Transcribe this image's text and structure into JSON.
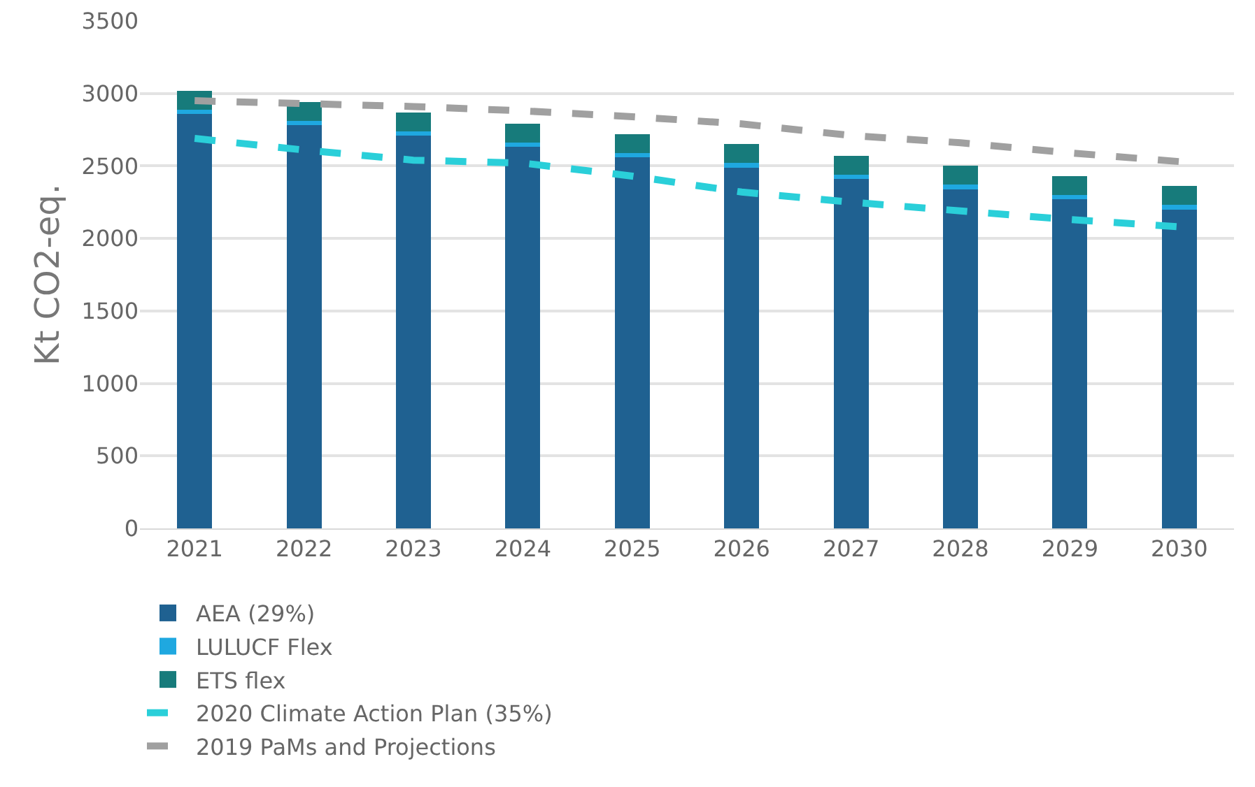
{
  "chart_data": {
    "type": "bar",
    "stacked": true,
    "ylabel": "Kt CO2-eq.",
    "categories": [
      "2021",
      "2022",
      "2023",
      "2024",
      "2025",
      "2026",
      "2027",
      "2028",
      "2029",
      "2030"
    ],
    "series": [
      {
        "name": "AEA (29%)",
        "color": "#1f6191",
        "values": [
          2860,
          2780,
          2710,
          2630,
          2560,
          2490,
          2410,
          2340,
          2270,
          2200
        ]
      },
      {
        "name": "LULUCF Flex",
        "color": "#1fa8e0",
        "values": [
          30,
          30,
          30,
          30,
          30,
          30,
          30,
          30,
          30,
          30
        ]
      },
      {
        "name": "ETS flex",
        "color": "#177b7b",
        "values": [
          130,
          130,
          130,
          130,
          130,
          130,
          130,
          130,
          130,
          130
        ]
      },
      {
        "name": "2020 Climate Action Plan (35%)",
        "type": "line",
        "line_style": "dashed",
        "color": "#2acfd9",
        "values": [
          2690,
          2610,
          2540,
          2520,
          2430,
          2320,
          2250,
          2190,
          2130,
          2080
        ]
      },
      {
        "name": "2019 PaMs and Projections",
        "type": "line",
        "line_style": "dashed",
        "color": "#a0a0a0",
        "values": [
          2950,
          2930,
          2910,
          2880,
          2840,
          2790,
          2710,
          2660,
          2590,
          2530
        ]
      }
    ],
    "ylim": [
      0,
      3500
    ],
    "yticks": [
      0,
      500,
      1000,
      1500,
      2000,
      2500,
      3000,
      3500
    ],
    "grid": "y",
    "legend": "bottom",
    "marker": "none"
  }
}
